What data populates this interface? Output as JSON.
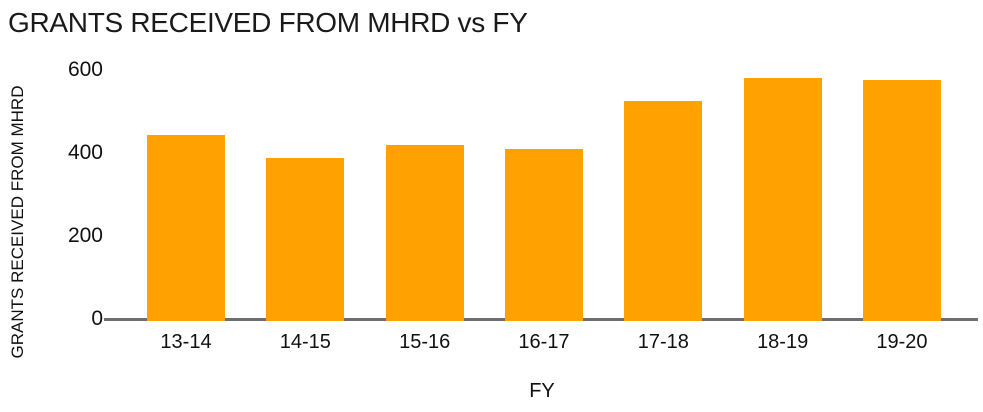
{
  "chart_data": {
    "type": "bar",
    "title": "GRANTS RECEIVED FROM MHRD vs FY",
    "xlabel": "FY",
    "ylabel": "GRANTS RECEIVED FROM MHRD",
    "categories": [
      "13-14",
      "14-15",
      "15-16",
      "16-17",
      "17-18",
      "18-19",
      "19-20"
    ],
    "values": [
      445,
      390,
      420,
      410,
      525,
      580,
      575
    ],
    "yticks": [
      0,
      200,
      400,
      600
    ],
    "ylim": [
      0,
      600
    ],
    "grid": false,
    "legend": false,
    "bar_color": "#FFA100",
    "axis_line_color": "#6E6E6E",
    "text_color": "#111111",
    "title_color": "#1A1A1A",
    "background_color": "#FFFFFF"
  }
}
